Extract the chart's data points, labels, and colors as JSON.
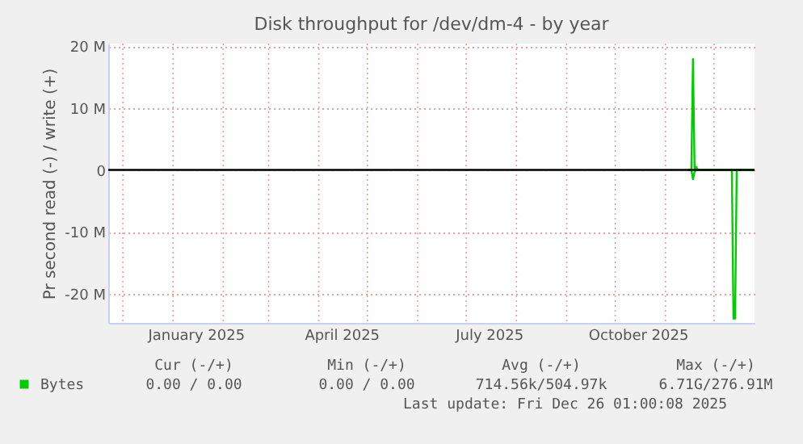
{
  "chart_data": {
    "type": "line",
    "title": "Disk throughput for /dev/dm-4 - by year",
    "ylabel": "Pr second read (-) / write (+)",
    "xlim": [
      "2024-11-22",
      "2025-12-26"
    ],
    "xticks": [
      {
        "value": "2024-12-01",
        "label": null
      },
      {
        "value": "2025-01-01",
        "label": null
      },
      {
        "value": "2025-01-15",
        "label": "January 2025"
      },
      {
        "value": "2025-02-01",
        "label": null
      },
      {
        "value": "2025-03-01",
        "label": null
      },
      {
        "value": "2025-04-01",
        "label": null
      },
      {
        "value": "2025-04-15",
        "label": "April 2025"
      },
      {
        "value": "2025-05-01",
        "label": null
      },
      {
        "value": "2025-06-01",
        "label": null
      },
      {
        "value": "2025-07-01",
        "label": null
      },
      {
        "value": "2025-07-15",
        "label": "July 2025"
      },
      {
        "value": "2025-08-01",
        "label": null
      },
      {
        "value": "2025-09-01",
        "label": null
      },
      {
        "value": "2025-10-01",
        "label": null
      },
      {
        "value": "2025-10-15",
        "label": "October 2025"
      },
      {
        "value": "2025-11-01",
        "label": null
      },
      {
        "value": "2025-12-01",
        "label": null
      }
    ],
    "ylim": [
      -24700000,
      20400000
    ],
    "yticks": [
      {
        "value": 20000000,
        "label": "20 M"
      },
      {
        "value": 10000000,
        "label": "10 M"
      },
      0,
      {
        "value": -10000000,
        "label": "-10 M"
      },
      {
        "value": -20000000,
        "label": "-20 M"
      }
    ],
    "grid": true,
    "legend": "bottom left",
    "ref_lines": [
      {
        "axis": "y",
        "value": 0,
        "color": "#000000"
      }
    ],
    "series": [
      {
        "name": "Bytes",
        "color": "#00cc00",
        "x": [
          "2025-11-15",
          "2025-11-17",
          "2025-11-18",
          "2025-11-19",
          "2025-11-20",
          "2025-11-21",
          "2025-12-26"
        ],
        "values": [
          0,
          0,
          17900000,
          0,
          500000,
          0,
          0
        ]
      },
      {
        "color": "#00cc00",
        "x": [
          "2025-11-15",
          "2025-11-17",
          "2025-11-18",
          "2025-11-19",
          "2025-11-20",
          "2025-12-12",
          "2025-12-13",
          "2025-12-14",
          "2025-12-15",
          "2025-12-26"
        ],
        "values": [
          0,
          0,
          -1500000,
          -300000,
          0,
          0,
          -24000000,
          -24000000,
          0,
          0
        ]
      }
    ],
    "annotations": [
      "Cur (-/+)",
      "Min (-/+)",
      "Avg (-/+)",
      "Max (-/+)",
      "0.00 /  0.00",
      "0.00 /  0.00",
      "714.56k/504.97k",
      "6.71G/276.91M",
      "Last update: Fri Dec 26 01:00:08 2025"
    ]
  }
}
